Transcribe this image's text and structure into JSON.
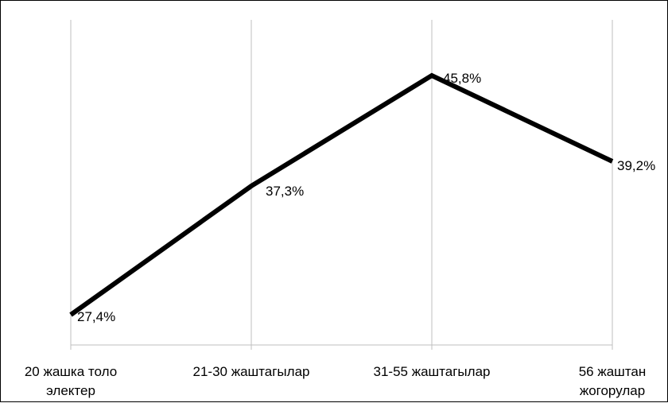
{
  "chart_data": {
    "type": "line",
    "categories": [
      [
        "20 жашка толо",
        "электер"
      ],
      [
        "21-30 жаштагылар"
      ],
      [
        "31-55 жаштагылар"
      ],
      [
        "56 жаштан",
        "жогорулар"
      ]
    ],
    "series": [
      {
        "values": [
          27.4,
          37.3,
          45.8,
          39.2
        ],
        "labels": [
          "27,4%",
          "37,3%",
          "45,8%",
          "39,2%"
        ],
        "color": "#000000"
      }
    ],
    "title": "",
    "xlabel": "",
    "ylabel": "",
    "ylim": [
      24,
      50
    ],
    "grid": "vertical",
    "legend": "none"
  }
}
